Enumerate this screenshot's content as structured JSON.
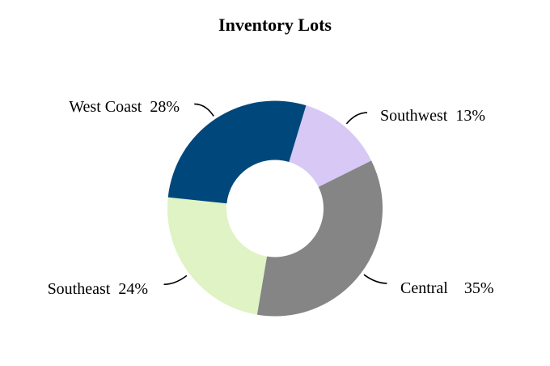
{
  "chart_data": {
    "type": "pie",
    "donut": true,
    "title": "Inventory Lots",
    "slices": [
      {
        "label": "Southwest",
        "value": 13,
        "display": "13%",
        "color": "#d8c8f6"
      },
      {
        "label": "Central",
        "value": 35,
        "display": "35%",
        "color": "#858585"
      },
      {
        "label": "Southeast",
        "value": 24,
        "display": "24%",
        "color": "#dff3c4"
      },
      {
        "label": "West Coast",
        "value": 28,
        "display": "28%",
        "color": "#00487b"
      }
    ],
    "start_angle_deg": 16.8,
    "direction": "clockwise",
    "legend": "none",
    "labels": "outside with leader lines"
  }
}
